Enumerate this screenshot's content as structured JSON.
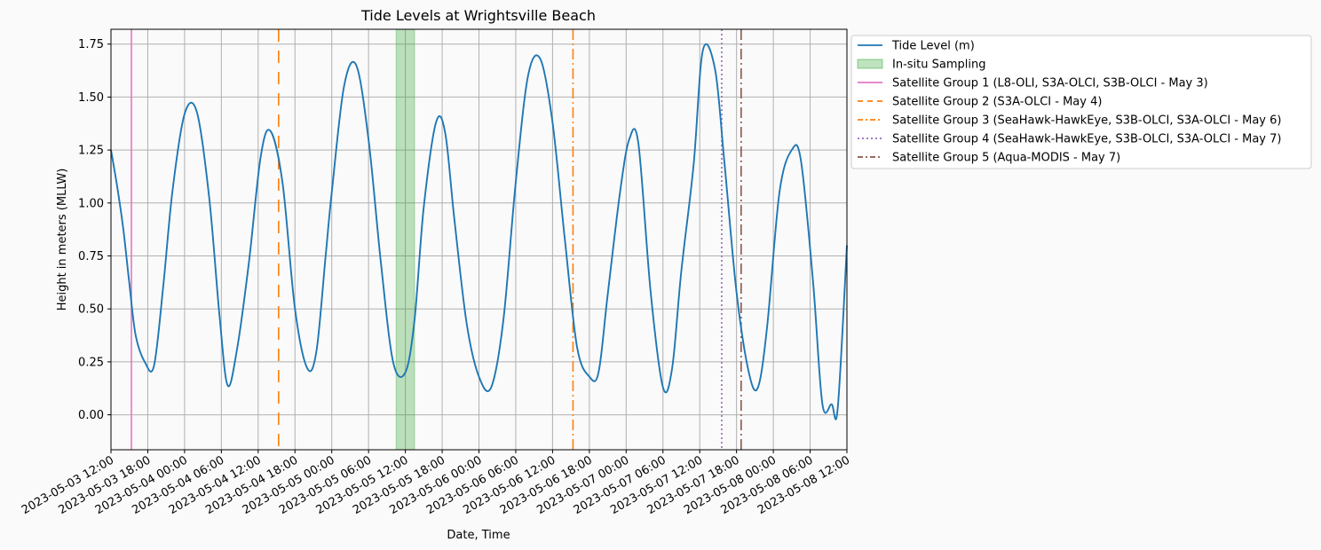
{
  "chart_data": {
    "type": "line",
    "title": "Tide Levels at Wrightsville Beach",
    "xlabel": "Date, Time",
    "ylabel": "Height in meters (MLLW)",
    "xlim": [
      "2023-05-03 12:00",
      "2023-05-08 12:00"
    ],
    "ylim": [
      -0.165,
      1.82
    ],
    "grid": true,
    "legend_position": "outside-right",
    "x_ticks": [
      "2023-05-03 12:00",
      "2023-05-03 18:00",
      "2023-05-04 00:00",
      "2023-05-04 06:00",
      "2023-05-04 12:00",
      "2023-05-04 18:00",
      "2023-05-05 00:00",
      "2023-05-05 06:00",
      "2023-05-05 12:00",
      "2023-05-05 18:00",
      "2023-05-06 00:00",
      "2023-05-06 06:00",
      "2023-05-06 12:00",
      "2023-05-06 18:00",
      "2023-05-07 00:00",
      "2023-05-07 06:00",
      "2023-05-07 12:00",
      "2023-05-07 18:00",
      "2023-05-08 00:00",
      "2023-05-08 06:00",
      "2023-05-08 12:00"
    ],
    "y_ticks": [
      "0.00",
      "0.25",
      "0.50",
      "0.75",
      "1.00",
      "1.25",
      "1.50",
      "1.75"
    ],
    "tide_series": {
      "name": "Tide Level (m)",
      "color": "#1f77b4",
      "x": [
        "2023-05-03 12:00",
        "2023-05-03 13:00",
        "2023-05-03 14:00",
        "2023-05-03 15:00",
        "2023-05-03 16:00",
        "2023-05-03 17:30",
        "2023-05-03 19:00",
        "2023-05-03 20:30",
        "2023-05-03 22:00",
        "2023-05-04 00:00",
        "2023-05-04 02:00",
        "2023-05-04 04:00",
        "2023-05-04 05:40",
        "2023-05-04 07:00",
        "2023-05-04 08:30",
        "2023-05-04 10:30",
        "2023-05-04 12:25",
        "2023-05-04 14:00",
        "2023-05-04 16:00",
        "2023-05-04 18:00",
        "2023-05-04 20:00",
        "2023-05-04 21:30",
        "2023-05-04 23:00",
        "2023-05-05 00:00",
        "2023-05-05 02:00",
        "2023-05-05 04:00",
        "2023-05-05 06:00",
        "2023-05-05 08:00",
        "2023-05-05 10:00",
        "2023-05-05 12:00",
        "2023-05-05 13:30",
        "2023-05-05 15:00",
        "2023-05-05 17:00",
        "2023-05-05 18:30",
        "2023-05-05 20:00",
        "2023-05-05 22:00",
        "2023-05-06 00:00",
        "2023-05-06 02:00",
        "2023-05-06 04:00",
        "2023-05-06 06:00",
        "2023-05-06 08:00",
        "2023-05-06 10:00",
        "2023-05-06 12:00",
        "2023-05-06 14:00",
        "2023-05-06 16:00",
        "2023-05-06 18:00",
        "2023-05-06 19:30",
        "2023-05-06 21:00",
        "2023-05-06 23:00",
        "2023-05-07 00:30",
        "2023-05-07 02:00",
        "2023-05-07 04:00",
        "2023-05-07 06:00",
        "2023-05-07 07:30",
        "2023-05-07 09:00",
        "2023-05-07 11:00",
        "2023-05-07 12:30",
        "2023-05-07 14:30",
        "2023-05-07 16:00",
        "2023-05-07 18:00",
        "2023-05-07 20:00",
        "2023-05-07 21:30",
        "2023-05-07 23:00",
        "2023-05-08 01:00",
        "2023-05-08 03:00",
        "2023-05-08 04:30",
        "2023-05-08 06:30",
        "2023-05-08 08:00",
        "2023-05-08 09:30",
        "2023-05-08 10:30",
        "2023-05-08 12:00"
      ],
      "y": [
        1.25,
        1.08,
        0.88,
        0.62,
        0.38,
        0.25,
        0.23,
        0.6,
        1.05,
        1.42,
        1.43,
        1.03,
        0.48,
        0.14,
        0.3,
        0.72,
        1.22,
        1.34,
        1.09,
        0.5,
        0.22,
        0.3,
        0.75,
        1.05,
        1.55,
        1.65,
        1.3,
        0.72,
        0.25,
        0.2,
        0.45,
        0.98,
        1.38,
        1.33,
        0.92,
        0.43,
        0.18,
        0.13,
        0.45,
        1.1,
        1.6,
        1.68,
        1.38,
        0.83,
        0.32,
        0.18,
        0.2,
        0.57,
        1.05,
        1.3,
        1.28,
        0.58,
        0.13,
        0.22,
        0.68,
        1.18,
        1.72,
        1.63,
        1.2,
        0.58,
        0.2,
        0.13,
        0.42,
        1.05,
        1.25,
        1.2,
        0.62,
        0.05,
        0.05,
        0.03,
        0.8
      ]
    },
    "in_situ_sampling": {
      "name": "In-situ Sampling",
      "color": "#2ca02c",
      "start": "2023-05-05 10:30",
      "end": "2023-05-05 13:30"
    },
    "satellite_groups": [
      {
        "name": "Satellite Group 1 (L8-OLI, S3A-OLCI, S3B-OLCI - May 3)",
        "x": "2023-05-03 15:20",
        "color": "#e377c2",
        "style": "solid"
      },
      {
        "name": "Satellite Group 2 (S3A-OLCI - May 4)",
        "x": "2023-05-04 15:20",
        "color": "#ff7f0e",
        "style": "dashed"
      },
      {
        "name": "Satellite Group 3 (SeaHawk-HawkEye, S3B-OLCI, S3A-OLCI - May 6)",
        "x": "2023-05-06 15:20",
        "color": "#ff7f0e",
        "style": "dashdot"
      },
      {
        "name": "Satellite Group 4 (SeaHawk-HawkEye, S3B-OLCI, S3A-OLCI - May 7)",
        "x": "2023-05-07 15:35",
        "color": "#9467bd",
        "style": "dotted"
      },
      {
        "name": "Satellite Group 5 (Aqua-MODIS - May 7)",
        "x": "2023-05-07 18:45",
        "color": "#8c564b",
        "style": "dashdot"
      }
    ]
  }
}
